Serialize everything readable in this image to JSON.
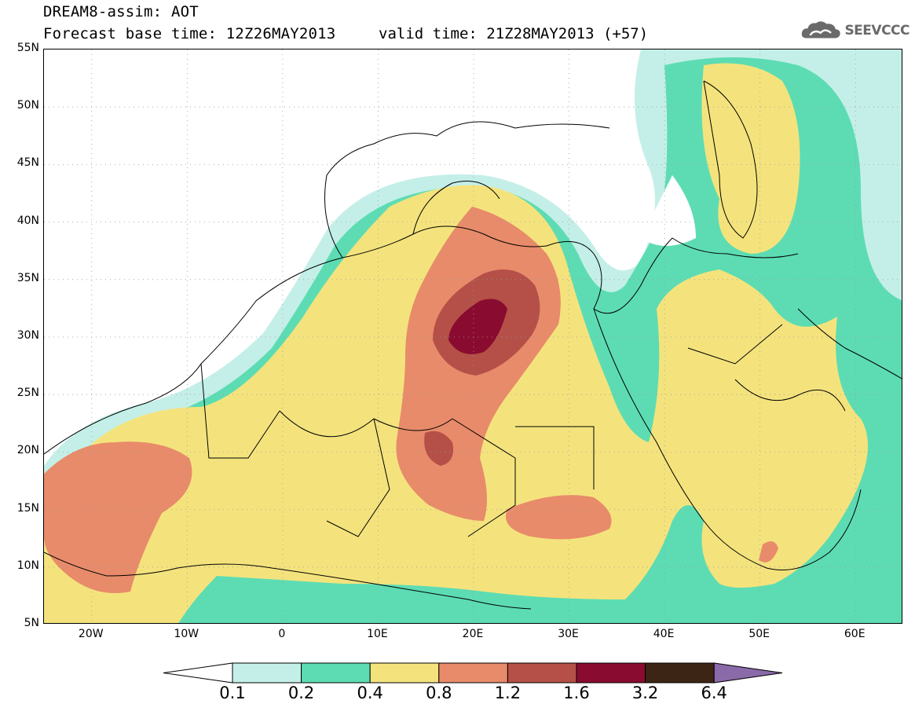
{
  "title": {
    "line1": "DREAM8-assim: AOT",
    "line2": "Forecast base time: 12Z26MAY2013",
    "valid": "valid time: 21Z28MAY2013 (+57)"
  },
  "logo": {
    "text": "SEEVCCC",
    "icon": "cloud-icon"
  },
  "map": {
    "lat_labels": [
      "55N",
      "50N",
      "45N",
      "40N",
      "35N",
      "30N",
      "25N",
      "20N",
      "15N",
      "10N",
      "5N"
    ],
    "lon_labels": [
      "20W",
      "10W",
      "0",
      "10E",
      "20E",
      "30E",
      "40E",
      "50E",
      "60E"
    ],
    "lat_range": [
      5,
      55
    ],
    "lon_range": [
      -25,
      65
    ]
  },
  "legend": {
    "levels": [
      "0.1",
      "0.2",
      "0.4",
      "0.8",
      "1.2",
      "1.6",
      "3.2",
      "6.4"
    ],
    "colors": {
      "below": "#ffffff",
      "c01_02": "#c4efe8",
      "c02_04": "#5ddcb3",
      "c04_08": "#f4e37d",
      "c08_12": "#e88b6a",
      "c12_16": "#b45048",
      "c16_32": "#8a0b30",
      "c32_64": "#3d2515",
      "above": "#8a6aa8"
    }
  }
}
